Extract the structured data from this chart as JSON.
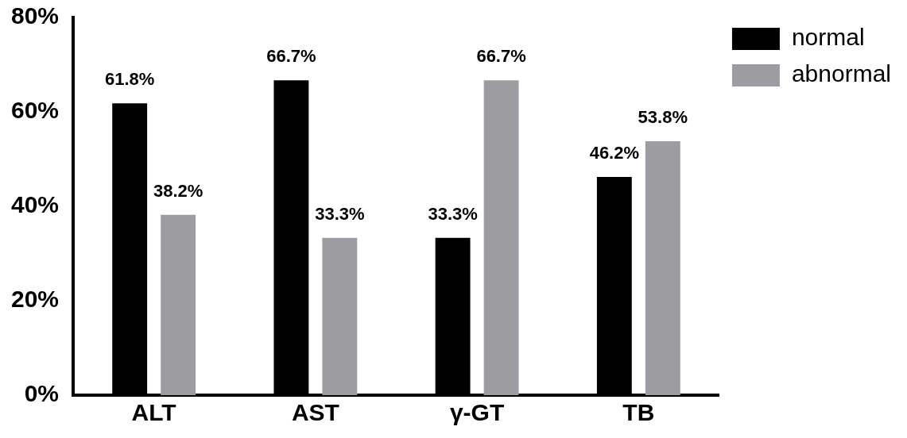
{
  "chart_data": {
    "type": "bar",
    "categories": [
      "ALT",
      "AST",
      "γ-GT",
      "TB"
    ],
    "series": [
      {
        "name": "normal",
        "color": "#000000",
        "values": [
          61.8,
          66.7,
          33.3,
          46.2
        ],
        "value_labels": [
          "61.8%",
          "66.7%",
          "33.3%",
          "46.2%"
        ]
      },
      {
        "name": "abnormal",
        "color": "#9d9ca1",
        "values": [
          38.2,
          33.3,
          66.7,
          53.8
        ],
        "value_labels": [
          "38.2%",
          "33.3%",
          "66.7%",
          "53.8%"
        ]
      }
    ],
    "ylim": [
      0,
      80
    ],
    "yticks": [
      {
        "value": 0,
        "label": "0%"
      },
      {
        "value": 20,
        "label": "20%"
      },
      {
        "value": 40,
        "label": "40%"
      },
      {
        "value": 60,
        "label": "60%"
      },
      {
        "value": 80,
        "label": "80%"
      }
    ],
    "grid": false,
    "legend": "top right"
  }
}
